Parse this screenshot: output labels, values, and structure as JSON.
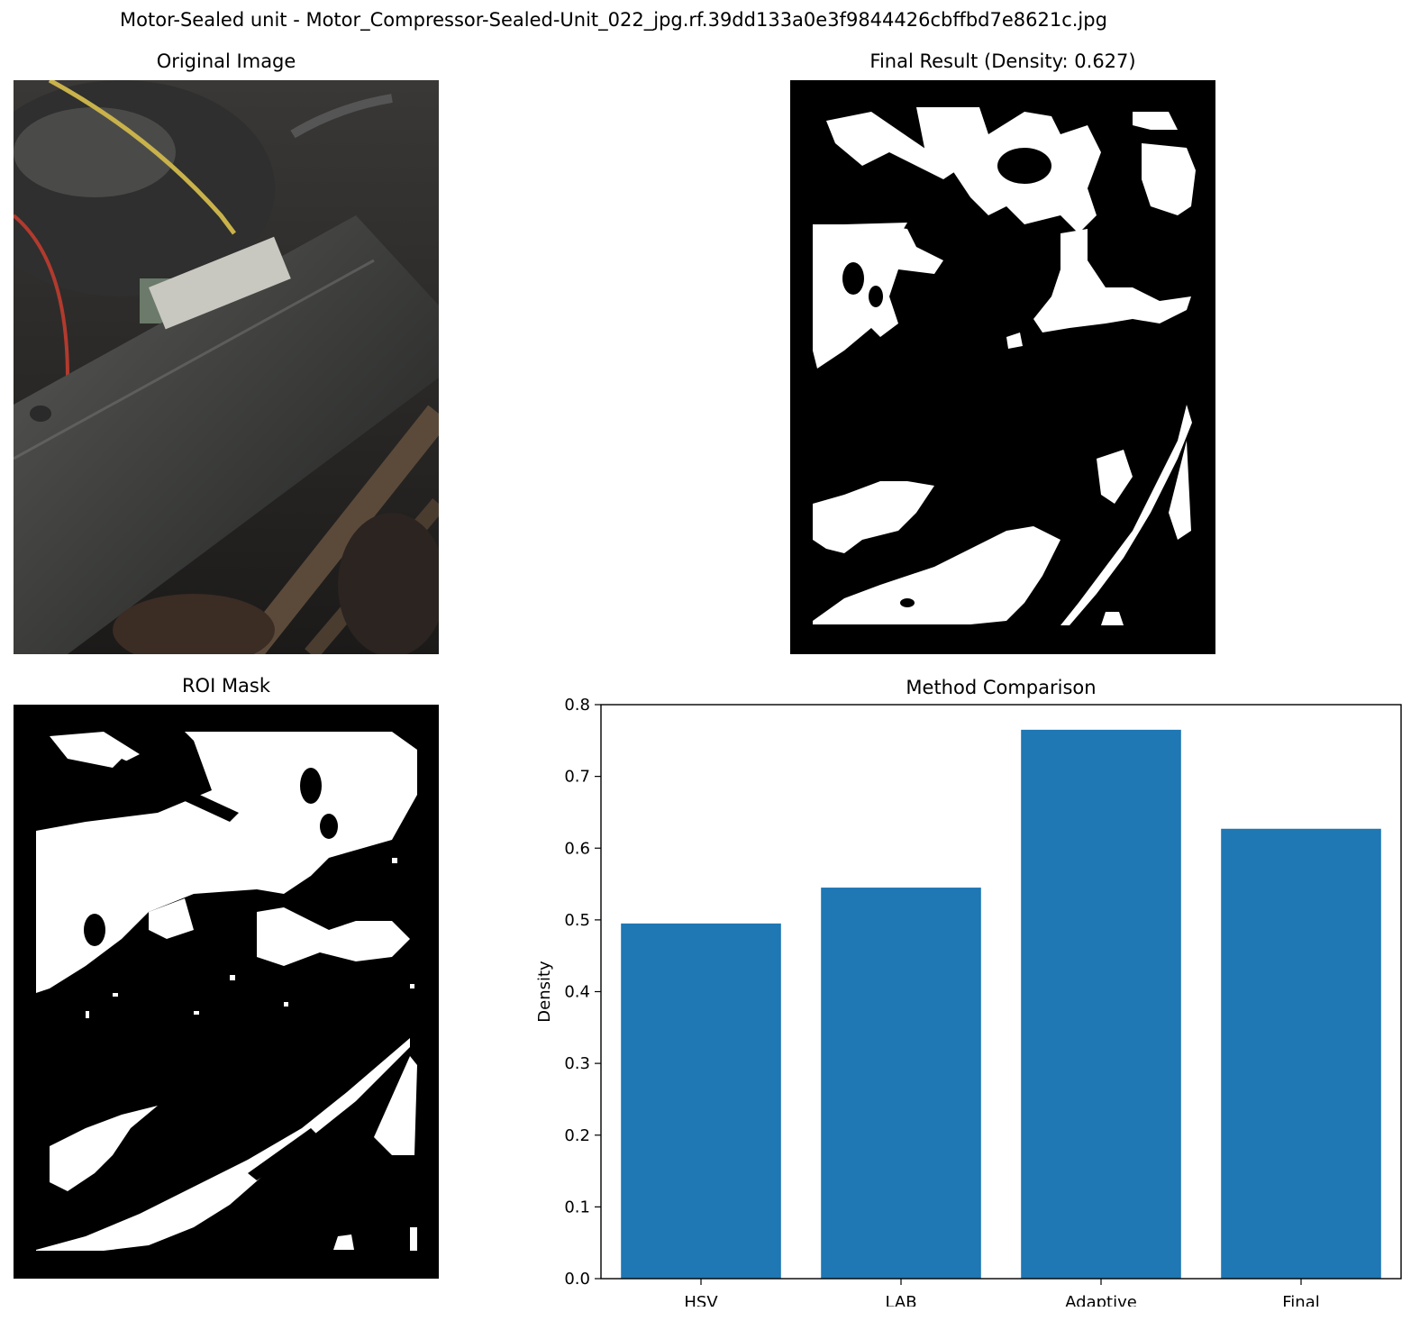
{
  "figure": {
    "suptitle": "Motor-Sealed unit - Motor_Compressor-Sealed-Unit_022_jpg.rf.39dd133a0e3f9844426cbffbd7e8621c.jpg"
  },
  "panels": {
    "original_title": "Original Image",
    "final_title": "Final Result (Density: 0.627)",
    "roi_title": "ROI Mask"
  },
  "chart_data": {
    "type": "bar",
    "title": "Method Comparison",
    "xlabel": "",
    "ylabel": "Density",
    "categories": [
      "HSV",
      "LAB",
      "Adaptive",
      "Final"
    ],
    "values": [
      0.495,
      0.545,
      0.765,
      0.627
    ],
    "ylim": [
      0,
      0.8
    ],
    "yticks": [
      "0.0",
      "0.1",
      "0.2",
      "0.3",
      "0.4",
      "0.5",
      "0.6",
      "0.7",
      "0.8"
    ],
    "bar_color": "#1f77b4",
    "grid": false,
    "legend": "none"
  }
}
